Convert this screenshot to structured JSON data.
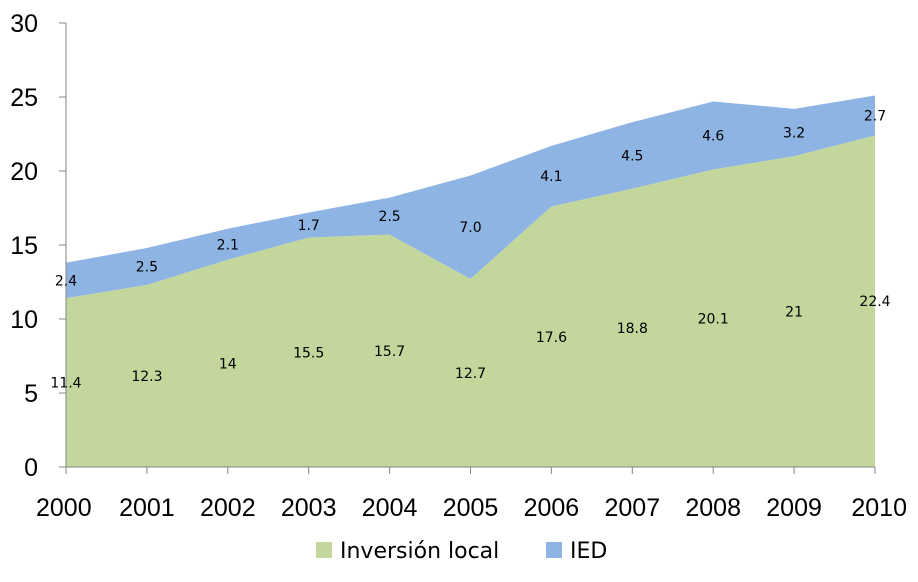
{
  "chart_data": {
    "type": "area",
    "stacked": true,
    "title": "",
    "xlabel": "",
    "ylabel": "",
    "categories": [
      "2000",
      "2001",
      "2002",
      "2003",
      "2004",
      "2005",
      "2006",
      "2007",
      "2008",
      "2009",
      "2010"
    ],
    "ylim": [
      0,
      30
    ],
    "yticks": [
      0,
      5,
      10,
      15,
      20,
      25,
      30
    ],
    "grid": false,
    "legend_position": "bottom",
    "series": [
      {
        "name": "Inversión local",
        "color": "#c3d69b",
        "values": [
          11.4,
          12.3,
          14,
          15.5,
          15.7,
          12.7,
          17.6,
          18.8,
          20.1,
          21,
          22.4
        ],
        "labels": [
          "11.4",
          "12.3",
          "14",
          "15.5",
          "15.7",
          "12.7",
          "17.6",
          "18.8",
          "20.1",
          "21",
          "22.4"
        ]
      },
      {
        "name": "IED",
        "color": "#8eb4e3",
        "values": [
          2.4,
          2.5,
          2.1,
          1.7,
          2.5,
          7.0,
          4.1,
          4.5,
          4.6,
          3.2,
          2.7
        ],
        "labels": [
          "2.4",
          "2.5",
          "2.1",
          "1.7",
          "2.5",
          "7.0",
          "4.1",
          "4.5",
          "4.6",
          "3.2",
          "2.7"
        ]
      }
    ]
  }
}
